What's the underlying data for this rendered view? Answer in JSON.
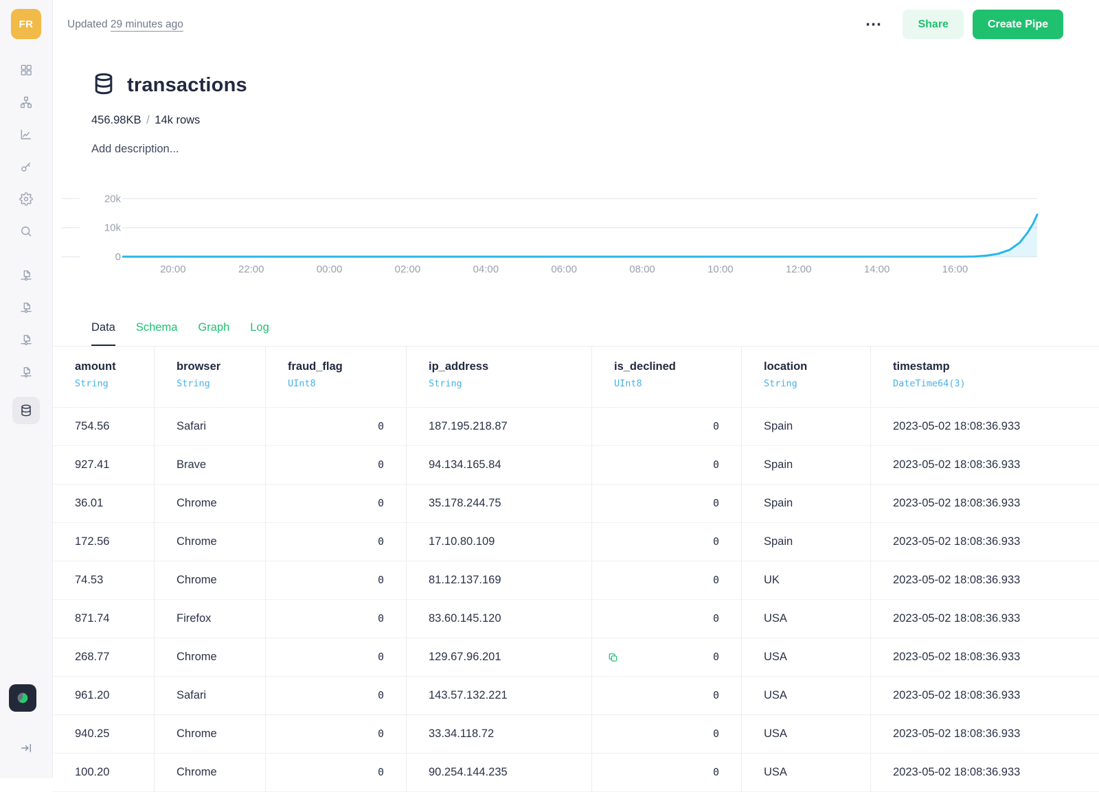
{
  "topbar": {
    "updated_label": "Updated",
    "updated_value": "29 minutes ago",
    "more_label": "⋯",
    "share_label": "Share",
    "create_pipe_label": "Create Pipe"
  },
  "sidebar": {
    "avatar_label": "FR",
    "nav_icons": [
      "grid-icon",
      "sitemap-icon",
      "line-chart-icon",
      "key-icon",
      "gear-icon",
      "search-icon"
    ],
    "pipe_icons": [
      "pipe-icon",
      "pipe-icon",
      "pipe-icon",
      "pipe-icon"
    ],
    "active_item_icon": "database-icon",
    "usage_icon": "pie-chart-icon",
    "collapse_icon": "collapse-sidebar-icon"
  },
  "datasource": {
    "icon": "database-icon",
    "title": "transactions",
    "size": "456.98KB",
    "size_separator": "/",
    "row_count": "14k rows",
    "description_placeholder": "Add description..."
  },
  "tabs": [
    {
      "label": "Data",
      "active": true
    },
    {
      "label": "Schema",
      "active": false
    },
    {
      "label": "Graph",
      "active": false
    },
    {
      "label": "Log",
      "active": false
    }
  ],
  "chart_data": {
    "type": "area",
    "x_tick_labels": [
      "20:00",
      "22:00",
      "00:00",
      "02:00",
      "04:00",
      "06:00",
      "08:00",
      "10:00",
      "12:00",
      "14:00",
      "16:00"
    ],
    "x_tick_hours": [
      2,
      4,
      6,
      8,
      10,
      12,
      14,
      16,
      18,
      20,
      22
    ],
    "y_ticks": [
      {
        "value": 0,
        "label": "0"
      },
      {
        "value": 10000,
        "label": "10k"
      },
      {
        "value": 20000,
        "label": "20k"
      }
    ],
    "xlim": [
      0,
      24.1
    ],
    "ylim": [
      0,
      22000
    ],
    "grid": "horizontal",
    "legend": "none",
    "line_color": "#29b5e8",
    "fill_color": "rgba(41,181,232,0.13)",
    "points_hour_value": [
      [
        0,
        0
      ],
      [
        4,
        0
      ],
      [
        8,
        0
      ],
      [
        12,
        0
      ],
      [
        16,
        0
      ],
      [
        20,
        0
      ],
      [
        21.5,
        0
      ],
      [
        22.2,
        0
      ],
      [
        22.5,
        80
      ],
      [
        22.8,
        350
      ],
      [
        23.1,
        1000
      ],
      [
        23.4,
        2400
      ],
      [
        23.65,
        4800
      ],
      [
        23.85,
        8200
      ],
      [
        24.0,
        11500
      ],
      [
        24.1,
        14500
      ]
    ]
  },
  "table": {
    "columns": [
      {
        "name": "amount",
        "type": "String"
      },
      {
        "name": "browser",
        "type": "String"
      },
      {
        "name": "fraud_flag",
        "type": "UInt8"
      },
      {
        "name": "ip_address",
        "type": "String"
      },
      {
        "name": "is_declined",
        "type": "UInt8"
      },
      {
        "name": "location",
        "type": "String"
      },
      {
        "name": "timestamp",
        "type": "DateTime64(3)"
      }
    ],
    "rows": [
      [
        "754.56",
        "Safari",
        "0",
        "187.195.218.87",
        "0",
        "Spain",
        "2023-05-02 18:08:36.933"
      ],
      [
        "927.41",
        "Brave",
        "0",
        "94.134.165.84",
        "0",
        "Spain",
        "2023-05-02 18:08:36.933"
      ],
      [
        "36.01",
        "Chrome",
        "0",
        "35.178.244.75",
        "0",
        "Spain",
        "2023-05-02 18:08:36.933"
      ],
      [
        "172.56",
        "Chrome",
        "0",
        "17.10.80.109",
        "0",
        "Spain",
        "2023-05-02 18:08:36.933"
      ],
      [
        "74.53",
        "Chrome",
        "0",
        "81.12.137.169",
        "0",
        "UK",
        "2023-05-02 18:08:36.933"
      ],
      [
        "871.74",
        "Firefox",
        "0",
        "83.60.145.120",
        "0",
        "USA",
        "2023-05-02 18:08:36.933"
      ],
      [
        "268.77",
        "Chrome",
        "0",
        "129.67.96.201",
        "0",
        "USA",
        "2023-05-02 18:08:36.933"
      ],
      [
        "961.20",
        "Safari",
        "0",
        "143.57.132.221",
        "0",
        "USA",
        "2023-05-02 18:08:36.933"
      ],
      [
        "940.25",
        "Chrome",
        "0",
        "33.34.118.72",
        "0",
        "USA",
        "2023-05-02 18:08:36.933"
      ],
      [
        "100.20",
        "Chrome",
        "0",
        "90.254.144.235",
        "0",
        "USA",
        "2023-05-02 18:08:36.933"
      ]
    ],
    "copy_indicator": {
      "row_index": 6,
      "column_index": 4,
      "icon": "copy-icon"
    }
  },
  "colors": {
    "accent_green": "#1fc16f",
    "share_bg": "#e9f9f1",
    "type_blue": "#47b2e8",
    "chart_line": "#29b5e8",
    "avatar_bg": "#f1ba49",
    "sidebar_bg": "#f7f7f9",
    "dark_text": "#222a40",
    "muted_text": "#717a8a",
    "tick_text": "#98a0ad",
    "gridline": "#e4e7ed"
  }
}
